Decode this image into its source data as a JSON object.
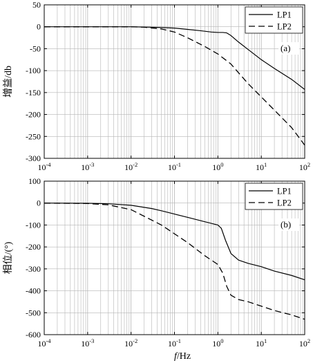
{
  "figure": {
    "xlabel_italic": "f",
    "xlabel_rest": "/Hz"
  },
  "chart_data": [
    {
      "id": "a",
      "type": "line",
      "panel_label": "(a)",
      "ylabel": "增益/db",
      "xscale": "log",
      "xlim": [
        0.0001,
        100
      ],
      "ylim": [
        -300,
        50
      ],
      "yticks": [
        50,
        0,
        -50,
        -100,
        -150,
        -200,
        -250,
        -300
      ],
      "xticks": [
        "10^-4",
        "10^-3",
        "10^-2",
        "10^-1",
        "10^0",
        "10^1",
        "10^2"
      ],
      "legend_position": "top-right",
      "series": [
        {
          "name": "LP1",
          "style": "solid",
          "x": [
            0.0001,
            0.001,
            0.01,
            0.03,
            0.06,
            0.1,
            0.2,
            0.4,
            0.7,
            1.0,
            1.3,
            1.6,
            2.0,
            3.0,
            5.0,
            10,
            20,
            50,
            100
          ],
          "y": [
            0,
            0,
            0,
            -1,
            -2,
            -3,
            -6,
            -9,
            -12,
            -13,
            -13,
            -14,
            -20,
            -35,
            -52,
            -75,
            -95,
            -120,
            -143
          ]
        },
        {
          "name": "LP2",
          "style": "dashed",
          "x": [
            0.0001,
            0.001,
            0.01,
            0.02,
            0.05,
            0.1,
            0.2,
            0.5,
            1.0,
            2.0,
            3.0,
            5.0,
            10,
            20,
            50,
            100
          ],
          "y": [
            0,
            0,
            0,
            -1,
            -5,
            -12,
            -25,
            -45,
            -62,
            -85,
            -105,
            -130,
            -160,
            -190,
            -230,
            -270
          ]
        }
      ]
    },
    {
      "id": "b",
      "type": "line",
      "panel_label": "(b)",
      "ylabel": "相位/(°)",
      "xscale": "log",
      "xlim": [
        0.0001,
        100
      ],
      "ylim": [
        -600,
        100
      ],
      "yticks": [
        100,
        0,
        -100,
        -200,
        -300,
        -400,
        -500,
        -600
      ],
      "xticks": [
        "10^-4",
        "10^-3",
        "10^-2",
        "10^-1",
        "10^0",
        "10^1",
        "10^2"
      ],
      "legend_position": "top-right",
      "series": [
        {
          "name": "LP1",
          "style": "solid",
          "x": [
            0.0001,
            0.001,
            0.003,
            0.01,
            0.03,
            0.05,
            0.1,
            0.2,
            0.5,
            1.0,
            1.2,
            1.5,
            2.0,
            3.0,
            5.0,
            10,
            20,
            50,
            100
          ],
          "y": [
            0,
            -1,
            -3,
            -10,
            -25,
            -35,
            -50,
            -65,
            -85,
            -100,
            -115,
            -170,
            -230,
            -260,
            -275,
            -290,
            -310,
            -330,
            -350
          ]
        },
        {
          "name": "LP2",
          "style": "dashed",
          "x": [
            0.0001,
            0.001,
            0.003,
            0.01,
            0.02,
            0.05,
            0.1,
            0.2,
            0.5,
            1.0,
            1.3,
            1.6,
            2.0,
            3.0,
            5.0,
            10,
            20,
            50,
            100
          ],
          "y": [
            0,
            -2,
            -8,
            -30,
            -60,
            -100,
            -140,
            -180,
            -240,
            -280,
            -320,
            -380,
            -420,
            -440,
            -450,
            -470,
            -490,
            -510,
            -530
          ]
        }
      ]
    }
  ]
}
